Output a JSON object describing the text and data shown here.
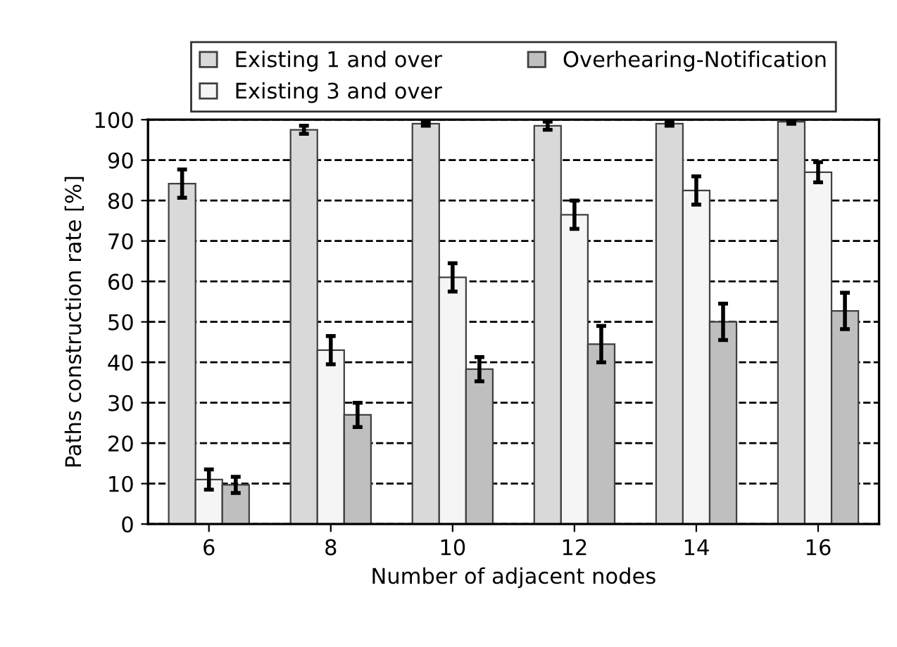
{
  "chart_data": {
    "type": "bar",
    "xlabel": "Number of adjacent nodes",
    "ylabel": "Paths construction rate [%]",
    "categories": [
      "6",
      "8",
      "10",
      "12",
      "14",
      "16"
    ],
    "series": [
      {
        "name": "Existing 1 and over",
        "color": "#d9d9d9",
        "values": [
          84.2,
          97.5,
          99,
          98.5,
          99,
          99.5
        ],
        "errors": [
          3.5,
          1,
          0.5,
          1,
          0.5,
          0.5
        ]
      },
      {
        "name": "Existing 3 and over",
        "color": "#f5f5f5",
        "values": [
          11,
          43,
          61,
          76.5,
          82.5,
          87
        ],
        "errors": [
          2.5,
          3.5,
          3.5,
          3.5,
          3.5,
          2.5
        ]
      },
      {
        "name": "Overhearing-Notification",
        "color": "#bfbfbf",
        "values": [
          9.7,
          27,
          38.3,
          44.5,
          50,
          52.7
        ],
        "errors": [
          2,
          3,
          3,
          4.5,
          4.5,
          4.5
        ]
      }
    ],
    "ylim": [
      0,
      100
    ],
    "yticks": [
      0,
      10,
      20,
      30,
      40,
      50,
      60,
      70,
      80,
      90,
      100
    ],
    "grid": "y",
    "legend": "top"
  }
}
